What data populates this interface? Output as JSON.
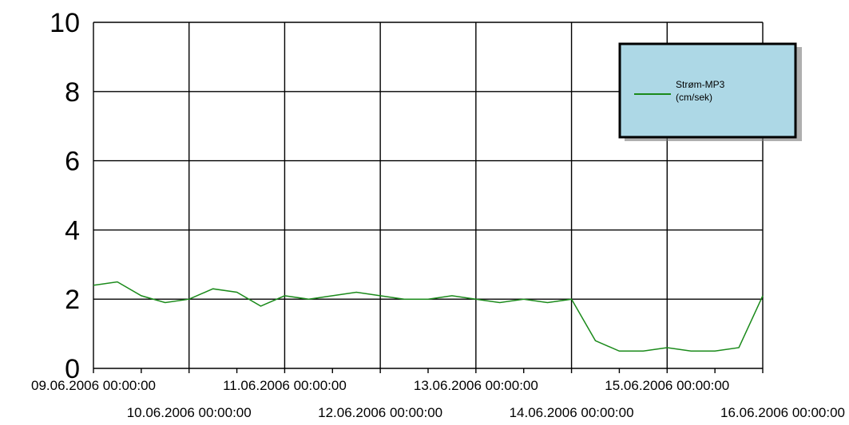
{
  "chart_data": {
    "type": "line",
    "title": "",
    "xlabel": "",
    "ylabel": "",
    "ylim": [
      0,
      10
    ],
    "yticks": [
      "0",
      "2",
      "4",
      "6",
      "8",
      "10"
    ],
    "x_tick_labels_row1": [
      "09.06.2006 00:00:00",
      "11.06.2006 00:00:00",
      "13.06.2006 00:00:00",
      "15.06.2006 00:00:00"
    ],
    "x_tick_labels_row2": [
      "10.06.2006 00:00:00",
      "12.06.2006 00:00:00",
      "14.06.2006 00:00:00",
      "16.06.2006 00:00:00"
    ],
    "xlim": [
      "09.06.2006 00:00:00",
      "16.06.2006 00:00:00"
    ],
    "grid": true,
    "legend_position": "top-right",
    "legend": {
      "line1": "Strøm-MP3",
      "line2": "(cm/sek)",
      "background": "#add8e6"
    },
    "series": [
      {
        "name": "Strøm-MP3 (cm/sek)",
        "color": "#1a8a1a",
        "x_hours": [
          0,
          6,
          12,
          18,
          24,
          30,
          36,
          42,
          48,
          54,
          60,
          66,
          72,
          78,
          84,
          90,
          96,
          102,
          108,
          114,
          120,
          126,
          132,
          138,
          144,
          150,
          156,
          162,
          168
        ],
        "y": [
          2.4,
          2.5,
          2.1,
          1.9,
          2.0,
          2.3,
          2.2,
          1.8,
          2.1,
          2.0,
          2.1,
          2.2,
          2.1,
          2.0,
          2.0,
          2.1,
          2.0,
          1.9,
          2.0,
          1.9,
          2.0,
          0.8,
          0.5,
          0.5,
          0.6,
          0.5,
          0.5,
          0.6,
          2.1
        ]
      }
    ]
  }
}
